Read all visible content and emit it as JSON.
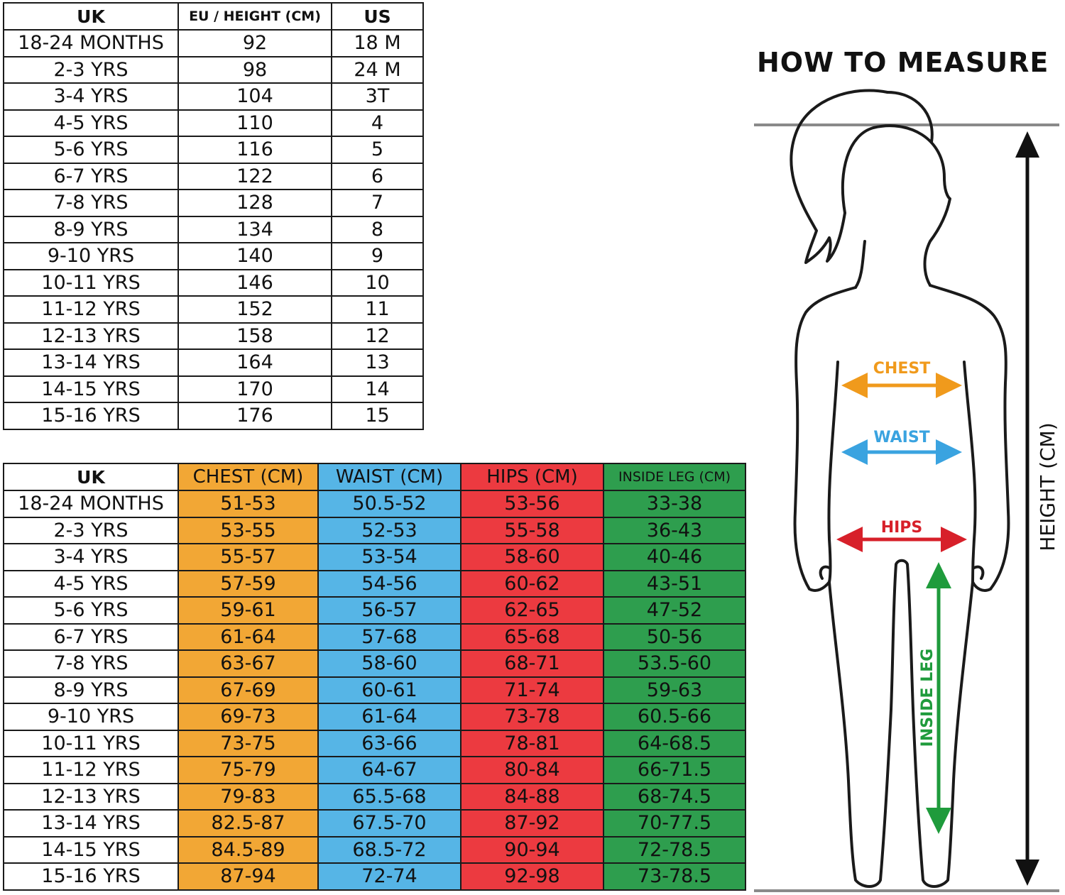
{
  "size_table": {
    "headers": [
      "UK",
      "EU / HEIGHT (CM)",
      "US"
    ],
    "rows": [
      [
        "18-24 MONTHS",
        "92",
        "18 M"
      ],
      [
        "2-3 YRS",
        "98",
        "24 M"
      ],
      [
        "3-4 YRS",
        "104",
        "3T"
      ],
      [
        "4-5 YRS",
        "110",
        "4"
      ],
      [
        "5-6 YRS",
        "116",
        "5"
      ],
      [
        "6-7 YRS",
        "122",
        "6"
      ],
      [
        "7-8 YRS",
        "128",
        "7"
      ],
      [
        "8-9 YRS",
        "134",
        "8"
      ],
      [
        "9-10 YRS",
        "140",
        "9"
      ],
      [
        "10-11 YRS",
        "146",
        "10"
      ],
      [
        "11-12 YRS",
        "152",
        "11"
      ],
      [
        "12-13 YRS",
        "158",
        "12"
      ],
      [
        "13-14 YRS",
        "164",
        "13"
      ],
      [
        "14-15 YRS",
        "170",
        "14"
      ],
      [
        "15-16 YRS",
        "176",
        "15"
      ]
    ]
  },
  "measure_table": {
    "headers": [
      "UK",
      "CHEST (CM)",
      "WAIST (CM)",
      "HIPS (CM)",
      "INSIDE LEG (CM)"
    ],
    "rows": [
      [
        "18-24 MONTHS",
        "51-53",
        "50.5-52",
        "53-56",
        "33-38"
      ],
      [
        "2-3 YRS",
        "53-55",
        "52-53",
        "55-58",
        "36-43"
      ],
      [
        "3-4 YRS",
        "55-57",
        "53-54",
        "58-60",
        "40-46"
      ],
      [
        "4-5 YRS",
        "57-59",
        "54-56",
        "60-62",
        "43-51"
      ],
      [
        "5-6 YRS",
        "59-61",
        "56-57",
        "62-65",
        "47-52"
      ],
      [
        "6-7 YRS",
        "61-64",
        "57-68",
        "65-68",
        "50-56"
      ],
      [
        "7-8 YRS",
        "63-67",
        "58-60",
        "68-71",
        "53.5-60"
      ],
      [
        "8-9 YRS",
        "67-69",
        "60-61",
        "71-74",
        "59-63"
      ],
      [
        "9-10 YRS",
        "69-73",
        "61-64",
        "73-78",
        "60.5-66"
      ],
      [
        "10-11 YRS",
        "73-75",
        "63-66",
        "78-81",
        "64-68.5"
      ],
      [
        "11-12 YRS",
        "75-79",
        "64-67",
        "80-84",
        "66-71.5"
      ],
      [
        "12-13 YRS",
        "79-83",
        "65.5-68",
        "84-88",
        "68-74.5"
      ],
      [
        "13-14 YRS",
        "82.5-87",
        "67.5-70",
        "87-92",
        "70-77.5"
      ],
      [
        "14-15 YRS",
        "84.5-89",
        "68.5-72",
        "90-94",
        "72-78.5"
      ],
      [
        "15-16 YRS",
        "87-94",
        "72-74",
        "92-98",
        "73-78.5"
      ]
    ]
  },
  "diagram": {
    "title": "HOW TO MEASURE",
    "labels": {
      "chest": "CHEST",
      "waist": "WAIST",
      "hips": "HIPS",
      "inside_leg": "INSIDE LEG",
      "height": "HEIGHT (CM)"
    },
    "icons": [
      "child-silhouette-icon",
      "height-arrow-icon",
      "chest-arrow-icon",
      "waist-arrow-icon",
      "hips-arrow-icon",
      "inside-leg-arrow-icon"
    ]
  },
  "colors": {
    "chest": "#f2a735",
    "waist": "#56b5e6",
    "hips": "#ec3a40",
    "inside_leg": "#2e9e4e",
    "chest_arrow": "#f09a1c",
    "waist_arrow": "#3aa3e0",
    "hips_arrow": "#d7202a",
    "leg_arrow": "#1f9b3c"
  }
}
